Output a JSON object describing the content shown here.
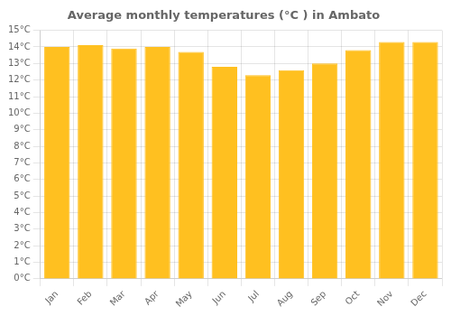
{
  "chart_data": {
    "type": "bar",
    "title": "Average monthly temperatures (°C ) in Ambato",
    "categories": [
      "Jan",
      "Feb",
      "Mar",
      "Apr",
      "May",
      "Jun",
      "Jul",
      "Aug",
      "Sep",
      "Oct",
      "Nov",
      "Dec"
    ],
    "values": [
      14.0,
      14.1,
      13.9,
      14.0,
      13.7,
      12.8,
      12.3,
      12.6,
      13.0,
      13.8,
      14.3,
      14.3
    ],
    "color": "#FFC020",
    "ylim": [
      0,
      15
    ],
    "yticks": [
      {
        "value": 0,
        "label": "0°C"
      },
      {
        "value": 1,
        "label": "1°C"
      },
      {
        "value": 2,
        "label": "2°C"
      },
      {
        "value": 3,
        "label": "3°C"
      },
      {
        "value": 4,
        "label": "4°C"
      },
      {
        "value": 5,
        "label": "5°C"
      },
      {
        "value": 6,
        "label": "6°C"
      },
      {
        "value": 7,
        "label": "7°C"
      },
      {
        "value": 8,
        "label": "8°C"
      },
      {
        "value": 9,
        "label": "9°C"
      },
      {
        "value": 10,
        "label": "10°C"
      },
      {
        "value": 11,
        "label": "11°C"
      },
      {
        "value": 12,
        "label": "12°C"
      },
      {
        "value": 13,
        "label": "13°C"
      },
      {
        "value": 14,
        "label": "14°C"
      },
      {
        "value": 15,
        "label": "15°C"
      }
    ],
    "grid": true
  }
}
